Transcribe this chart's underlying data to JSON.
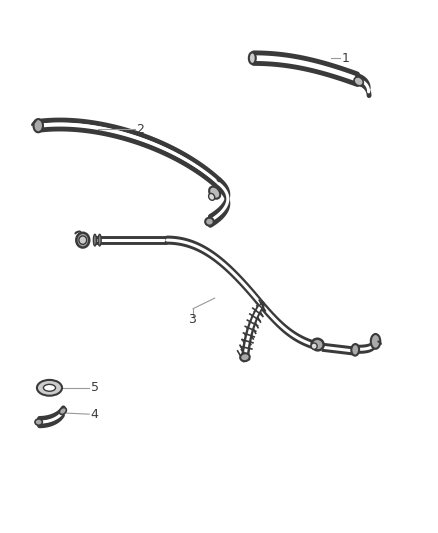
{
  "background_color": "#ffffff",
  "line_color": "#3a3a3a",
  "label_color": "#3a3a3a",
  "leader_line_color": "#999999",
  "figsize": [
    4.38,
    5.33
  ],
  "dpi": 100
}
